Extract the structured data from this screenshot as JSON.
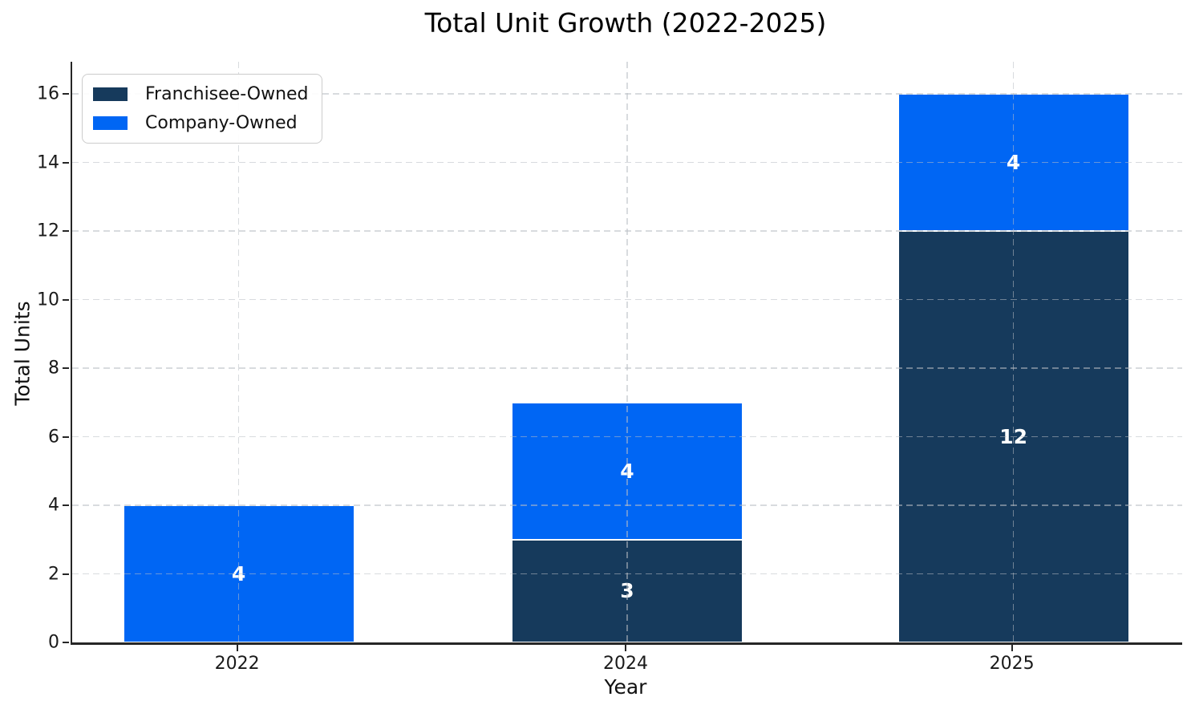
{
  "chart_data": {
    "type": "bar",
    "stacked": true,
    "title": "Total Unit Growth (2022-2025)",
    "xlabel": "Year",
    "ylabel": "Total Units",
    "categories": [
      "2022",
      "2024",
      "2025"
    ],
    "series": [
      {
        "name": "Franchisee-Owned",
        "color": "#163A5C",
        "values": [
          0,
          3,
          12
        ]
      },
      {
        "name": "Company-Owned",
        "color": "#0066F4",
        "values": [
          4,
          4,
          4
        ]
      }
    ],
    "bar_value_labels": [
      [
        "4"
      ],
      [
        "3",
        "4"
      ],
      [
        "12",
        "4"
      ]
    ],
    "yticks": [
      0,
      2,
      4,
      6,
      8,
      10,
      12,
      14,
      16
    ],
    "ylim": [
      0,
      16.94
    ],
    "grid": true,
    "grid_style": "dashed",
    "legend_position": "upper left",
    "value_label_color": "#ffffff",
    "axis_color": "#262626",
    "grid_color": "#d9d9d9",
    "background_color": "#ffffff"
  }
}
